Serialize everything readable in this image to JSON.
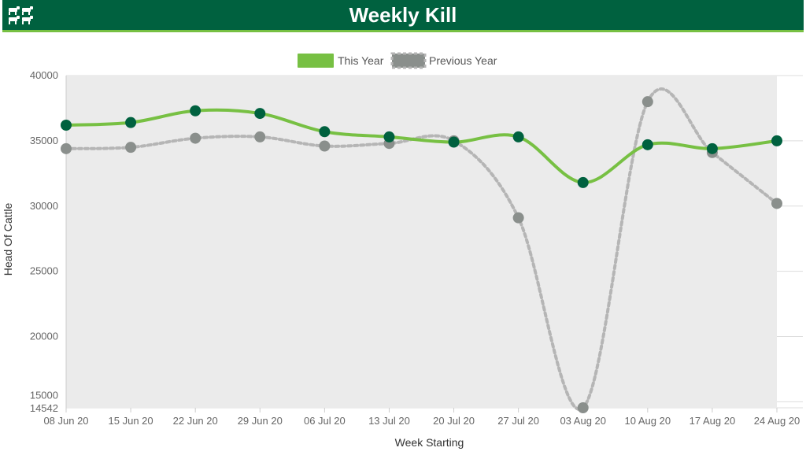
{
  "header": {
    "title": "Weekly Kill",
    "icon": "cattle-icon"
  },
  "colors": {
    "header_bg": "#00613f",
    "header_accent": "#77c043",
    "this_year_line": "#77c043",
    "this_year_marker": "#00613f",
    "previous_year_line": "#b5b5b5",
    "previous_year_marker": "#8a8f8c",
    "plot_fill": "#ebebeb"
  },
  "chart_data": {
    "type": "line",
    "title": "Weekly Kill",
    "xlabel": "Week Starting",
    "ylabel": "Head Of Cattle",
    "categories": [
      "08 Jun 20",
      "15 Jun 20",
      "22 Jun 20",
      "29 Jun 20",
      "06 Jul 20",
      "13 Jul 20",
      "20 Jul 20",
      "27 Jul 20",
      "03 Aug 20",
      "10 Aug 20",
      "17 Aug 20",
      "24 Aug 20"
    ],
    "series": [
      {
        "name": "This Year",
        "values": [
          36200,
          36400,
          37300,
          37100,
          35700,
          35300,
          34900,
          35300,
          31800,
          34700,
          34400,
          35000
        ]
      },
      {
        "name": "Previous Year",
        "values": [
          34400,
          34500,
          35200,
          35300,
          34600,
          34800,
          35000,
          29100,
          14542,
          38000,
          34100,
          30200
        ]
      }
    ],
    "ylim": [
      14542,
      40000
    ],
    "yticks": [
      "40000",
      "35000",
      "30000",
      "25000",
      "20000",
      "15000",
      "14542"
    ],
    "ytick_values": [
      40000,
      35000,
      30000,
      25000,
      20000,
      15000,
      14542
    ],
    "grid": true,
    "legend": "top-center"
  }
}
